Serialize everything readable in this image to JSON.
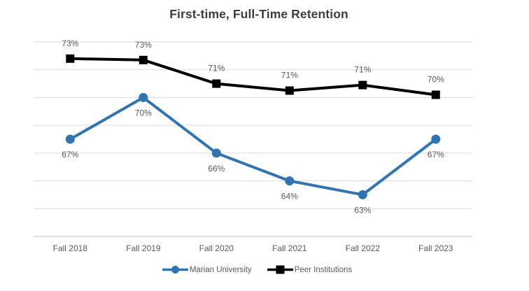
{
  "title": "First-time, Full-Time Retention",
  "chart_data": {
    "type": "line",
    "title": "First-time, Full-Time Retention",
    "categories": [
      "Fall 2018",
      "Fall 2019",
      "Fall 2020",
      "Fall 2021",
      "Fall 2022",
      "Fall 2023"
    ],
    "series": [
      {
        "name": "Marian University",
        "values": [
          67,
          70,
          66,
          64,
          63,
          67
        ],
        "data_labels": [
          "67%",
          "70%",
          "66%",
          "64%",
          "63%",
          "67%"
        ],
        "color": "#2E75B6",
        "marker": "circle",
        "label_position": "below"
      },
      {
        "name": "Peer Institutions",
        "values": [
          73,
          73,
          71,
          71,
          71,
          70
        ],
        "values_plotted": [
          72.8,
          72.7,
          71.0,
          70.5,
          70.9,
          70.2
        ],
        "data_labels": [
          "73%",
          "73%",
          "71%",
          "71%",
          "71%",
          "70%"
        ],
        "color": "#000000",
        "marker": "square",
        "label_position": "above"
      }
    ],
    "xlabel": "",
    "ylabel": "",
    "ylim": [
      60,
      74
    ],
    "gridline_step": 2,
    "grid": "horizontal-only",
    "y_axis_tick_labels": "hidden",
    "legend_position": "bottom"
  },
  "legend": {
    "items": [
      {
        "label": "Marian University",
        "color": "#2E75B6",
        "marker": "circle"
      },
      {
        "label": "Peer Institutions",
        "color": "#000000",
        "marker": "square"
      }
    ]
  },
  "colors": {
    "marian_blue": "#2E75B6",
    "peer_black": "#000000",
    "gridline": "#D9D9D9",
    "axis_line": "#BFBFBF",
    "text_muted": "#595959",
    "title_text": "#3d3d3d",
    "background": "#FFFFFF"
  }
}
